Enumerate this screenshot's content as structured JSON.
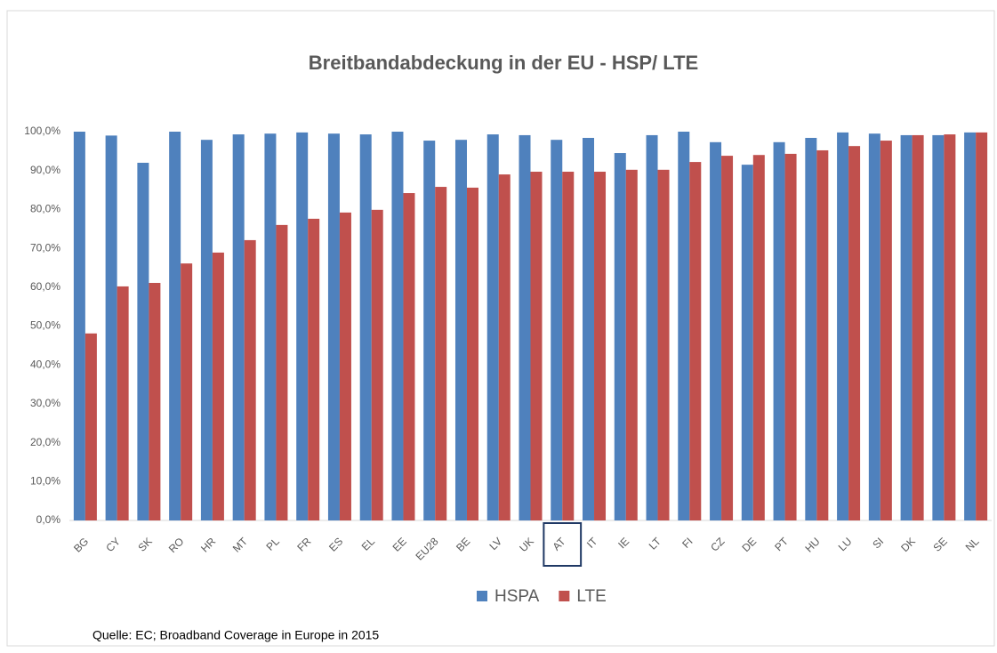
{
  "chart_data": {
    "type": "bar",
    "title": "Breitbandabdeckung in der EU - HSP/ LTE",
    "categories": [
      "BG",
      "CY",
      "SK",
      "RO",
      "HR",
      "MT",
      "PL",
      "FR",
      "ES",
      "EL",
      "EE",
      "EU28",
      "BE",
      "LV",
      "UK",
      "AT",
      "IT",
      "IE",
      "LT",
      "FI",
      "CZ",
      "DE",
      "PT",
      "HU",
      "LU",
      "SI",
      "DK",
      "SE",
      "NL"
    ],
    "series": [
      {
        "name": "HSPA",
        "color": "#4f81bd",
        "values": [
          100,
          99.0,
          92.0,
          100,
          97.9,
          99.3,
          99.5,
          99.8,
          99.5,
          99.3,
          100,
          97.7,
          97.9,
          99.3,
          99.1,
          97.9,
          98.4,
          94.5,
          99.1,
          100,
          97.3,
          91.5,
          97.3,
          98.4,
          99.8,
          99.5,
          99.1,
          99.1,
          99.8
        ]
      },
      {
        "name": "LTE",
        "color": "#c0504d",
        "values": [
          48.1,
          60.2,
          61.1,
          66.1,
          68.9,
          72.1,
          76.0,
          77.6,
          79.2,
          79.9,
          84.2,
          85.8,
          85.6,
          89.0,
          89.7,
          89.7,
          89.7,
          90.2,
          90.2,
          92.2,
          93.8,
          94.0,
          94.3,
          95.2,
          96.3,
          97.7,
          99.1,
          99.3,
          99.8
        ]
      }
    ],
    "ylim": [
      0,
      100
    ],
    "yticks": [
      {
        "value": 0,
        "label": "0,0%"
      },
      {
        "value": 10,
        "label": "10,0%"
      },
      {
        "value": 20,
        "label": "20,0%"
      },
      {
        "value": 30,
        "label": "30,0%"
      },
      {
        "value": 40,
        "label": "40,0%"
      },
      {
        "value": 50,
        "label": "50,0%"
      },
      {
        "value": 60,
        "label": "60,0%"
      },
      {
        "value": 70,
        "label": "70,0%"
      },
      {
        "value": 80,
        "label": "80,0%"
      },
      {
        "value": 90,
        "label": "90,0%"
      },
      {
        "value": 100,
        "label": "100,0%"
      }
    ],
    "grid": false,
    "legend": "bottom",
    "source": "Quelle: EC; Broadband Coverage in Europe in 2015"
  }
}
